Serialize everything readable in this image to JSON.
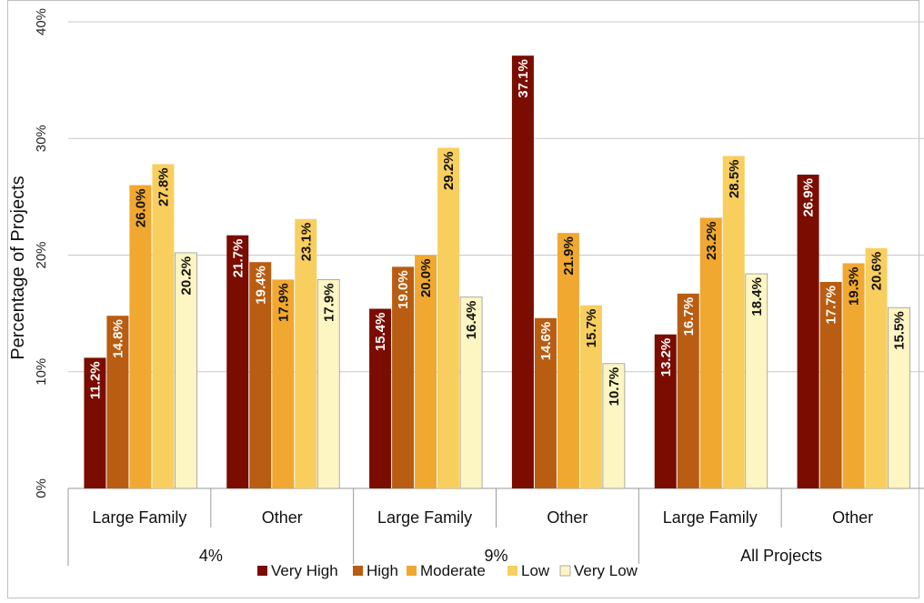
{
  "chart_data": {
    "type": "bar",
    "ylabel": "Percentage of Projects",
    "ylim": [
      0,
      40
    ],
    "yticks": [
      "0%",
      "10%",
      "20%",
      "30%",
      "40%"
    ],
    "grid": true,
    "legend_position": "bottom",
    "groups": [
      {
        "label": "4%",
        "categories": [
          "Large Family",
          "Other"
        ]
      },
      {
        "label": "9%",
        "categories": [
          "Large Family",
          "Other"
        ]
      },
      {
        "label": "All Projects",
        "categories": [
          "Large Family",
          "Other"
        ]
      }
    ],
    "categories": [
      "Large Family",
      "Other",
      "Large Family",
      "Other",
      "Large Family",
      "Other"
    ],
    "series": [
      {
        "name": "Very High",
        "color": "#7a0c00",
        "label_color": "#ffffff",
        "values": [
          11.2,
          21.7,
          15.4,
          37.1,
          13.2,
          26.9
        ],
        "labels": [
          "11.2%",
          "21.7%",
          "15.4%",
          "37.1%",
          "13.2%",
          "26.9%"
        ]
      },
      {
        "name": "High",
        "color": "#b85d12",
        "label_color": "#ffffff",
        "values": [
          14.8,
          19.4,
          19.0,
          14.6,
          16.7,
          17.7
        ],
        "labels": [
          "14.8%",
          "19.4%",
          "19.0%",
          "14.6%",
          "16.7%",
          "17.7%"
        ]
      },
      {
        "name": "Moderate",
        "color": "#f0a830",
        "label_color": "#111111",
        "values": [
          26.0,
          17.9,
          20.0,
          21.9,
          23.2,
          19.3
        ],
        "labels": [
          "26.0%",
          "17.9%",
          "20.0%",
          "21.9%",
          "23.2%",
          "19.3%"
        ]
      },
      {
        "name": "Low",
        "color": "#f8cf5e",
        "label_color": "#111111",
        "values": [
          27.8,
          23.1,
          29.2,
          15.7,
          28.5,
          20.6
        ],
        "labels": [
          "27.8%",
          "23.1%",
          "29.2%",
          "15.7%",
          "28.5%",
          "20.6%"
        ]
      },
      {
        "name": "Very Low",
        "color": "#fdf5c2",
        "label_color": "#111111",
        "values": [
          20.2,
          17.9,
          16.4,
          10.7,
          18.4,
          15.5
        ],
        "labels": [
          "20.2%",
          "17.9%",
          "16.4%",
          "10.7%",
          "18.4%",
          "15.5%"
        ]
      }
    ]
  }
}
